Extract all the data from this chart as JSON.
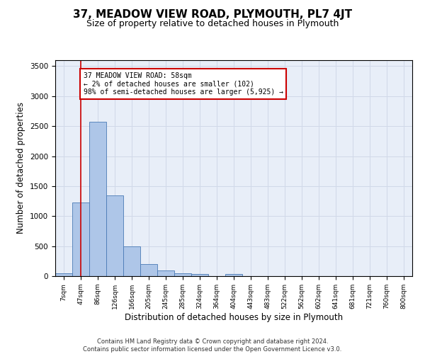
{
  "title": "37, MEADOW VIEW ROAD, PLYMOUTH, PL7 4JT",
  "subtitle": "Size of property relative to detached houses in Plymouth",
  "xlabel": "Distribution of detached houses by size in Plymouth",
  "ylabel": "Number of detached properties",
  "bar_labels": [
    "7sqm",
    "47sqm",
    "86sqm",
    "126sqm",
    "166sqm",
    "205sqm",
    "245sqm",
    "285sqm",
    "324sqm",
    "364sqm",
    "404sqm",
    "443sqm",
    "483sqm",
    "522sqm",
    "562sqm",
    "602sqm",
    "641sqm",
    "681sqm",
    "721sqm",
    "760sqm",
    "800sqm"
  ],
  "bar_values": [
    50,
    1230,
    2570,
    1340,
    500,
    195,
    100,
    45,
    40,
    5,
    30,
    0,
    0,
    0,
    0,
    0,
    0,
    0,
    0,
    0,
    0
  ],
  "bar_color": "#aec6e8",
  "bar_edge_color": "#4a7ab5",
  "vline_x": 1,
  "vline_color": "#cc0000",
  "annotation_text": "37 MEADOW VIEW ROAD: 58sqm\n← 2% of detached houses are smaller (102)\n98% of semi-detached houses are larger (5,925) →",
  "annotation_box_color": "#cc0000",
  "ylim": [
    0,
    3600
  ],
  "yticks": [
    0,
    500,
    1000,
    1500,
    2000,
    2500,
    3000,
    3500
  ],
  "grid_color": "#d0d8e8",
  "bg_color": "#e8eef8",
  "footer_line1": "Contains HM Land Registry data © Crown copyright and database right 2024.",
  "footer_line2": "Contains public sector information licensed under the Open Government Licence v3.0.",
  "title_fontsize": 11,
  "subtitle_fontsize": 9,
  "xlabel_fontsize": 8.5,
  "ylabel_fontsize": 8.5
}
